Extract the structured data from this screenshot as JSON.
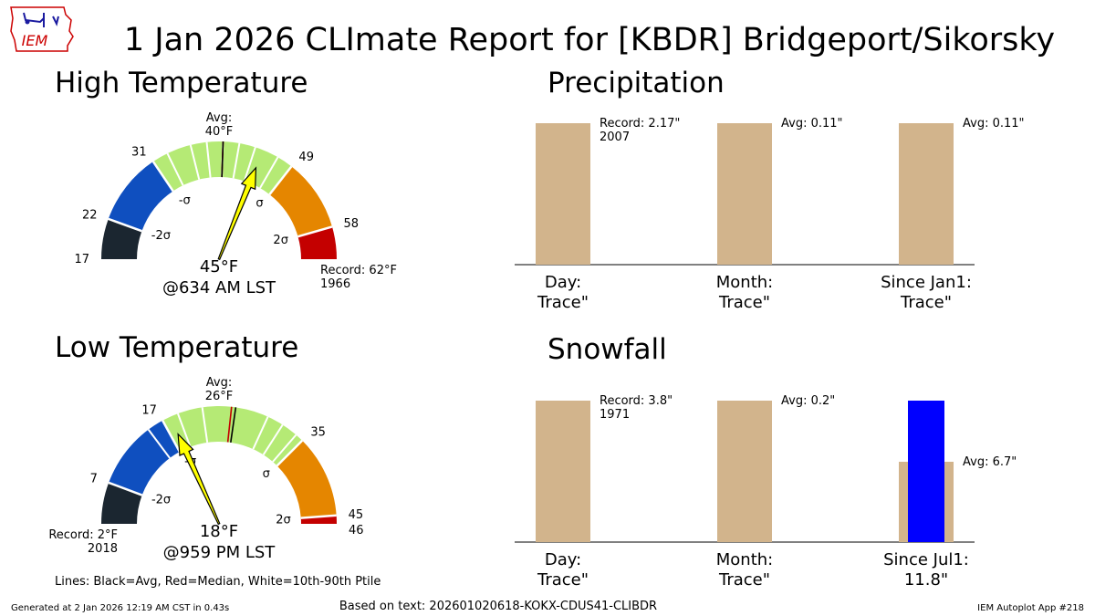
{
  "title": "1 Jan 2026 CLImate Report for [KBDR] Bridgeport/Sikorsky",
  "logo": {
    "text": "IEM",
    "color": "#cc0000"
  },
  "colors": {
    "record_low": "#1b2630",
    "sigma2_low": "#0f4fbf",
    "normal": "#b5ea75",
    "sigma2_high": "#e58600",
    "record_high": "#c40000",
    "bar": "#d2b48c",
    "snow_obs": "#0000ff",
    "pointer": "#ffff00"
  },
  "high_temp": {
    "title": "High Temperature",
    "min": 17,
    "max": 62,
    "bands": [
      {
        "from": 17,
        "to": 22,
        "color": "#1b2630"
      },
      {
        "from": 22,
        "to": 31,
        "color": "#0f4fbf"
      },
      {
        "from": 31,
        "to": 49,
        "color": "#b5ea75"
      },
      {
        "from": 49,
        "to": 58,
        "color": "#e58600"
      },
      {
        "from": 58,
        "to": 62,
        "color": "#c40000"
      }
    ],
    "ticks": [
      "17",
      "22",
      "31",
      "49",
      "58"
    ],
    "tick_values": [
      17,
      22,
      31,
      49,
      58
    ],
    "sigma_labels": [
      "-2σ",
      "-σ",
      "σ",
      "2σ"
    ],
    "sigma_values": [
      22,
      31,
      49,
      58
    ],
    "pctl_lines": [
      33,
      36,
      38,
      40,
      42,
      44,
      47
    ],
    "avg_value": 40,
    "median_value": 40,
    "avg_label_1": "Avg:",
    "avg_label_2": "40°F",
    "record_label_1": "Record: 62°F",
    "record_label_2": "1966",
    "observed": 45,
    "obs_label": "45°F",
    "obs_time": "@634 AM LST"
  },
  "low_temp": {
    "title": "Low Temperature",
    "min": 2,
    "max": 46,
    "bands": [
      {
        "from": 2,
        "to": 7,
        "color": "#1b2630"
      },
      {
        "from": 7,
        "to": 17,
        "color": "#0f4fbf"
      },
      {
        "from": 17,
        "to": 35,
        "color": "#b5ea75"
      },
      {
        "from": 35,
        "to": 45,
        "color": "#e58600"
      },
      {
        "from": 45,
        "to": 46,
        "color": "#c40000"
      }
    ],
    "ticks": [
      "7",
      "17",
      "35",
      "45",
      "46"
    ],
    "tick_values": [
      7,
      17,
      35,
      45,
      46
    ],
    "sigma_labels": [
      "-2σ",
      "-σ",
      "σ",
      "2σ"
    ],
    "sigma_values": [
      7,
      17,
      35,
      45
    ],
    "pctl_lines": [
      15,
      19,
      22,
      30,
      32,
      34
    ],
    "avg_value": 26,
    "median_value": 25.5,
    "avg_label_1": "Avg:",
    "avg_label_2": "26°F",
    "record_label_1": "Record: 2°F",
    "record_label_2": "2018",
    "observed": 18,
    "obs_label": "18°F",
    "obs_time": "@959 PM LST"
  },
  "legend_note": "Lines: Black=Avg, Red=Median, White=10th-90th Ptile",
  "chart_data": [
    {
      "type": "bar",
      "title": "Precipitation",
      "categories": [
        "Day:",
        "Month:",
        "Since Jan1:"
      ],
      "category_values": [
        "Trace\"",
        "Trace\"",
        "Trace\""
      ],
      "average_values": [
        2.17,
        0.11,
        0.11
      ],
      "observed_values": [
        0,
        0,
        0
      ],
      "annotations": [
        {
          "line1": "Record: 2.17\"",
          "line2": "2007"
        },
        {
          "line1": "Avg: 0.11\"",
          "line2": ""
        },
        {
          "line1": "Avg: 0.11\"",
          "line2": ""
        }
      ]
    },
    {
      "type": "bar",
      "title": "Snowfall",
      "categories": [
        "Day:",
        "Month:",
        "Since Jul1:"
      ],
      "category_values": [
        "Trace\"",
        "Trace\"",
        "11.8\""
      ],
      "average_values": [
        3.8,
        0.2,
        6.7
      ],
      "observed_values": [
        0,
        0,
        11.8
      ],
      "annotations": [
        {
          "line1": "Record: 3.8\"",
          "line2": "1971"
        },
        {
          "line1": "Avg: 0.2\"",
          "line2": ""
        },
        {
          "line1": "Avg: 6.7\"",
          "line2": ""
        }
      ]
    }
  ],
  "footer": {
    "generated": "Generated at 2 Jan 2026 12:19 AM CST in 0.43s",
    "based_on": "Based on text: 202601020618-KOKX-CDUS41-CLIBDR",
    "app": "IEM Autoplot App #218"
  }
}
